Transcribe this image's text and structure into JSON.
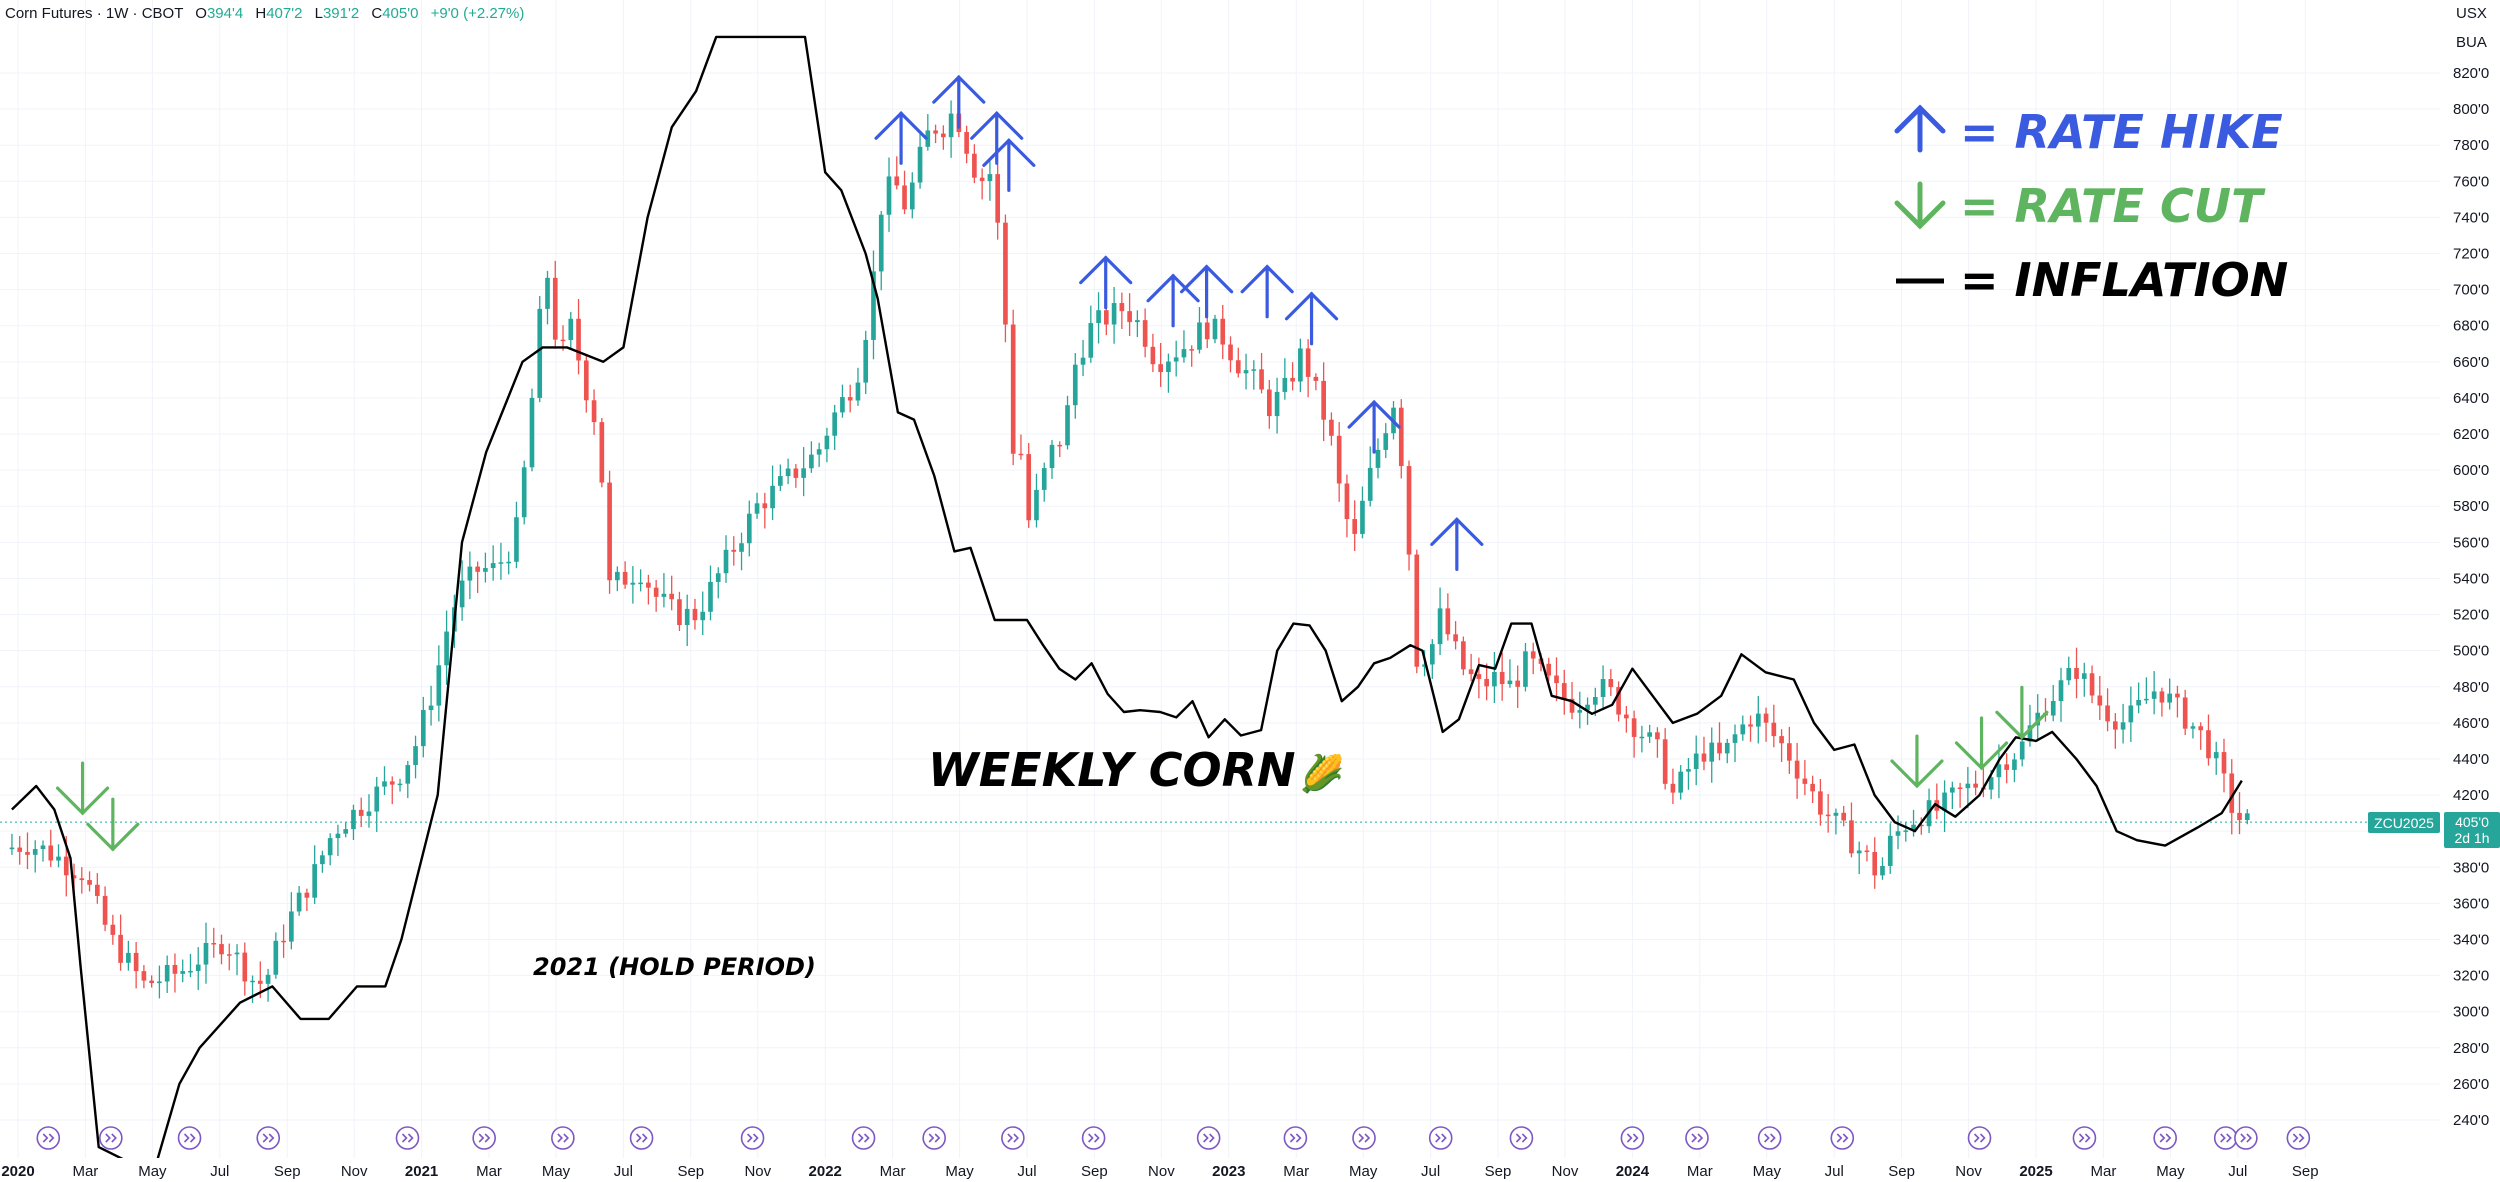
{
  "header": {
    "symbol": "Corn Futures · 1W · CBOT",
    "open_label": "O",
    "open": "394'4",
    "high_label": "H",
    "high": "407'2",
    "low_label": "L",
    "low": "391'2",
    "close_label": "C",
    "close": "405'0",
    "change": "+9'0 (+2.27%)"
  },
  "axis_units": [
    "USX",
    "BUA"
  ],
  "price_tag": {
    "ticker": "ZCU2025",
    "price": "405'0",
    "countdown": "2d 1h"
  },
  "colors": {
    "up": "#26a69a",
    "down": "#ef5350",
    "hike": "#3a5be0",
    "cut": "#5fb55f",
    "inflation": "#000000",
    "tag": "#26a69a"
  },
  "chart_data": {
    "type": "candlestick",
    "title": "WEEKLY CORN",
    "title_emoji": "🌽",
    "annotation": "2021 (HOLD PERIOD)",
    "y_ticks": [
      "240'0",
      "260'0",
      "280'0",
      "300'0",
      "320'0",
      "340'0",
      "360'0",
      "380'0",
      "400'0",
      "420'0",
      "440'0",
      "460'0",
      "480'0",
      "500'0",
      "520'0",
      "540'0",
      "560'0",
      "580'0",
      "600'0",
      "620'0",
      "640'0",
      "660'0",
      "680'0",
      "700'0",
      "720'0",
      "740'0",
      "760'0",
      "780'0",
      "800'0",
      "820'0"
    ],
    "ylim": [
      231,
      834
    ],
    "xlim": [
      2020.0,
      2025.83
    ],
    "x_ticks": [
      {
        "label": "2020",
        "t": 2020.0,
        "year": true
      },
      {
        "label": "Mar",
        "t": 2020.167
      },
      {
        "label": "May",
        "t": 2020.333
      },
      {
        "label": "Jul",
        "t": 2020.5
      },
      {
        "label": "Sep",
        "t": 2020.667
      },
      {
        "label": "Nov",
        "t": 2020.833
      },
      {
        "label": "2021",
        "t": 2021.0,
        "year": true
      },
      {
        "label": "Mar",
        "t": 2021.167
      },
      {
        "label": "May",
        "t": 2021.333
      },
      {
        "label": "Jul",
        "t": 2021.5
      },
      {
        "label": "Sep",
        "t": 2021.667
      },
      {
        "label": "Nov",
        "t": 2021.833
      },
      {
        "label": "2022",
        "t": 2022.0,
        "year": true
      },
      {
        "label": "Mar",
        "t": 2022.167
      },
      {
        "label": "May",
        "t": 2022.333
      },
      {
        "label": "Jul",
        "t": 2022.5
      },
      {
        "label": "Sep",
        "t": 2022.667
      },
      {
        "label": "Nov",
        "t": 2022.833
      },
      {
        "label": "2023",
        "t": 2023.0,
        "year": true
      },
      {
        "label": "Mar",
        "t": 2023.167
      },
      {
        "label": "May",
        "t": 2023.333
      },
      {
        "label": "Jul",
        "t": 2023.5
      },
      {
        "label": "Sep",
        "t": 2023.667
      },
      {
        "label": "Nov",
        "t": 2023.833
      },
      {
        "label": "2024",
        "t": 2024.0,
        "year": true
      },
      {
        "label": "Mar",
        "t": 2024.167
      },
      {
        "label": "May",
        "t": 2024.333
      },
      {
        "label": "Jul",
        "t": 2024.5
      },
      {
        "label": "Sep",
        "t": 2024.667
      },
      {
        "label": "Nov",
        "t": 2024.833
      },
      {
        "label": "2025",
        "t": 2025.0,
        "year": true
      },
      {
        "label": "Mar",
        "t": 2025.167
      },
      {
        "label": "May",
        "t": 2025.333
      },
      {
        "label": "Jul",
        "t": 2025.5
      },
      {
        "label": "Sep",
        "t": 2025.667
      }
    ],
    "last_price": 405,
    "price_path": [
      [
        2019.985,
        390
      ],
      [
        2020.04,
        393
      ],
      [
        2020.08,
        390
      ],
      [
        2020.12,
        385
      ],
      [
        2020.15,
        380
      ],
      [
        2020.18,
        377
      ],
      [
        2020.22,
        355
      ],
      [
        2020.25,
        340
      ],
      [
        2020.3,
        325
      ],
      [
        2020.33,
        315
      ],
      [
        2020.37,
        318
      ],
      [
        2020.42,
        322
      ],
      [
        2020.47,
        330
      ],
      [
        2020.5,
        333
      ],
      [
        2020.53,
        340
      ],
      [
        2020.56,
        330
      ],
      [
        2020.6,
        318
      ],
      [
        2020.63,
        315
      ],
      [
        2020.66,
        335
      ],
      [
        2020.7,
        355
      ],
      [
        2020.75,
        375
      ],
      [
        2020.8,
        400
      ],
      [
        2020.85,
        410
      ],
      [
        2020.9,
        420
      ],
      [
        2020.96,
        430
      ],
      [
        2021.0,
        445
      ],
      [
        2021.05,
        480
      ],
      [
        2021.09,
        520
      ],
      [
        2021.12,
        535
      ],
      [
        2021.16,
        545
      ],
      [
        2021.2,
        545
      ],
      [
        2021.25,
        560
      ],
      [
        2021.28,
        610
      ],
      [
        2021.31,
        680
      ],
      [
        2021.33,
        710
      ],
      [
        2021.36,
        660
      ],
      [
        2021.39,
        680
      ],
      [
        2021.42,
        650
      ],
      [
        2021.46,
        620
      ],
      [
        2021.48,
        535
      ],
      [
        2021.52,
        540
      ],
      [
        2021.56,
        545
      ],
      [
        2021.6,
        530
      ],
      [
        2021.65,
        520
      ],
      [
        2021.7,
        520
      ],
      [
        2021.75,
        540
      ],
      [
        2021.8,
        560
      ],
      [
        2021.85,
        580
      ],
      [
        2021.9,
        590
      ],
      [
        2021.95,
        600
      ],
      [
        2022.0,
        610
      ],
      [
        2022.04,
        630
      ],
      [
        2022.08,
        645
      ],
      [
        2022.1,
        655
      ],
      [
        2022.13,
        690
      ],
      [
        2022.16,
        750
      ],
      [
        2022.19,
        760
      ],
      [
        2022.22,
        745
      ],
      [
        2022.25,
        770
      ],
      [
        2022.28,
        790
      ],
      [
        2022.31,
        790
      ],
      [
        2022.34,
        800
      ],
      [
        2022.37,
        780
      ],
      [
        2022.4,
        760
      ],
      [
        2022.43,
        765
      ],
      [
        2022.46,
        710
      ],
      [
        2022.48,
        610
      ],
      [
        2022.5,
        620
      ],
      [
        2022.52,
        570
      ],
      [
        2022.55,
        590
      ],
      [
        2022.58,
        610
      ],
      [
        2022.61,
        620
      ],
      [
        2022.64,
        660
      ],
      [
        2022.68,
        680
      ],
      [
        2022.72,
        685
      ],
      [
        2022.76,
        690
      ],
      [
        2022.8,
        680
      ],
      [
        2022.84,
        660
      ],
      [
        2022.88,
        665
      ],
      [
        2022.92,
        670
      ],
      [
        2022.96,
        680
      ],
      [
        2023.0,
        675
      ],
      [
        2023.04,
        660
      ],
      [
        2023.08,
        650
      ],
      [
        2023.12,
        635
      ],
      [
        2023.16,
        645
      ],
      [
        2023.2,
        665
      ],
      [
        2023.24,
        640
      ],
      [
        2023.27,
        620
      ],
      [
        2023.3,
        580
      ],
      [
        2023.33,
        560
      ],
      [
        2023.36,
        590
      ],
      [
        2023.4,
        620
      ],
      [
        2023.43,
        640
      ],
      [
        2023.46,
        580
      ],
      [
        2023.48,
        495
      ],
      [
        2023.52,
        500
      ],
      [
        2023.54,
        520
      ],
      [
        2023.56,
        510
      ],
      [
        2023.6,
        490
      ],
      [
        2023.64,
        480
      ],
      [
        2023.68,
        485
      ],
      [
        2023.72,
        480
      ],
      [
        2023.76,
        495
      ],
      [
        2023.8,
        485
      ],
      [
        2023.84,
        475
      ],
      [
        2023.88,
        470
      ],
      [
        2023.92,
        480
      ],
      [
        2023.96,
        478
      ],
      [
        2024.0,
        465
      ],
      [
        2024.04,
        455
      ],
      [
        2024.08,
        445
      ],
      [
        2024.12,
        420
      ],
      [
        2024.16,
        435
      ],
      [
        2024.2,
        445
      ],
      [
        2024.24,
        440
      ],
      [
        2024.28,
        455
      ],
      [
        2024.32,
        465
      ],
      [
        2024.36,
        455
      ],
      [
        2024.4,
        445
      ],
      [
        2024.44,
        430
      ],
      [
        2024.48,
        415
      ],
      [
        2024.52,
        405
      ],
      [
        2024.56,
        395
      ],
      [
        2024.6,
        385
      ],
      [
        2024.63,
        375
      ],
      [
        2024.66,
        395
      ],
      [
        2024.7,
        405
      ],
      [
        2024.74,
        410
      ],
      [
        2024.78,
        412
      ],
      [
        2024.82,
        420
      ],
      [
        2024.86,
        425
      ],
      [
        2024.9,
        430
      ],
      [
        2024.94,
        440
      ],
      [
        2024.98,
        445
      ],
      [
        2025.0,
        455
      ],
      [
        2025.04,
        470
      ],
      [
        2025.08,
        480
      ],
      [
        2025.12,
        490
      ],
      [
        2025.16,
        475
      ],
      [
        2025.2,
        465
      ],
      [
        2025.24,
        460
      ],
      [
        2025.28,
        470
      ],
      [
        2025.32,
        480
      ],
      [
        2025.36,
        470
      ],
      [
        2025.4,
        460
      ],
      [
        2025.44,
        450
      ],
      [
        2025.48,
        430
      ],
      [
        2025.5,
        415
      ],
      [
        2025.53,
        405
      ]
    ],
    "inflation_series": [
      [
        2019.985,
        412
      ],
      [
        2020.045,
        425
      ],
      [
        2020.09,
        412
      ],
      [
        2020.13,
        385
      ],
      [
        2020.155,
        325
      ],
      [
        2020.2,
        225
      ],
      [
        2020.335,
        210
      ],
      [
        2020.4,
        260
      ],
      [
        2020.45,
        280
      ],
      [
        2020.55,
        305
      ],
      [
        2020.63,
        314
      ],
      [
        2020.7,
        296
      ],
      [
        2020.77,
        296
      ],
      [
        2020.84,
        314
      ],
      [
        2020.91,
        314
      ],
      [
        2020.95,
        340
      ],
      [
        2021.04,
        420
      ],
      [
        2021.1,
        560
      ],
      [
        2021.16,
        610
      ],
      [
        2021.25,
        660
      ],
      [
        2021.3,
        668
      ],
      [
        2021.36,
        668
      ],
      [
        2021.45,
        660
      ],
      [
        2021.5,
        668
      ],
      [
        2021.56,
        740
      ],
      [
        2021.62,
        790
      ],
      [
        2021.68,
        810
      ],
      [
        2021.73,
        840
      ],
      [
        2021.95,
        840
      ],
      [
        2022.0,
        765
      ],
      [
        2022.04,
        755
      ],
      [
        2022.1,
        720
      ],
      [
        2022.13,
        695
      ],
      [
        2022.18,
        632
      ],
      [
        2022.22,
        628
      ],
      [
        2022.27,
        597
      ],
      [
        2022.32,
        555
      ],
      [
        2022.36,
        557
      ],
      [
        2022.42,
        517
      ],
      [
        2022.46,
        517
      ],
      [
        2022.5,
        517
      ],
      [
        2022.54,
        503
      ],
      [
        2022.58,
        490
      ],
      [
        2022.62,
        484
      ],
      [
        2022.66,
        493
      ],
      [
        2022.7,
        476
      ],
      [
        2022.74,
        466
      ],
      [
        2022.78,
        467
      ],
      [
        2022.83,
        466
      ],
      [
        2022.87,
        463
      ],
      [
        2022.91,
        472
      ],
      [
        2022.95,
        452
      ],
      [
        2022.99,
        462
      ],
      [
        2023.03,
        453
      ],
      [
        2023.08,
        456
      ],
      [
        2023.12,
        500
      ],
      [
        2023.16,
        515
      ],
      [
        2023.2,
        514
      ],
      [
        2023.24,
        500
      ],
      [
        2023.28,
        472
      ],
      [
        2023.32,
        480
      ],
      [
        2023.36,
        493
      ],
      [
        2023.4,
        496
      ],
      [
        2023.45,
        503
      ],
      [
        2023.48,
        500
      ],
      [
        2023.53,
        455
      ],
      [
        2023.57,
        462
      ],
      [
        2023.62,
        492
      ],
      [
        2023.66,
        490
      ],
      [
        2023.7,
        515
      ],
      [
        2023.75,
        515
      ],
      [
        2023.8,
        475
      ],
      [
        2023.85,
        472
      ],
      [
        2023.9,
        465
      ],
      [
        2023.95,
        470
      ],
      [
        2024.0,
        490
      ],
      [
        2024.05,
        475
      ],
      [
        2024.1,
        460
      ],
      [
        2024.16,
        465
      ],
      [
        2024.22,
        475
      ],
      [
        2024.27,
        498
      ],
      [
        2024.33,
        488
      ],
      [
        2024.4,
        484
      ],
      [
        2024.45,
        460
      ],
      [
        2024.5,
        445
      ],
      [
        2024.55,
        448
      ],
      [
        2024.6,
        420
      ],
      [
        2024.65,
        405
      ],
      [
        2024.7,
        400
      ],
      [
        2024.75,
        415
      ],
      [
        2024.8,
        408
      ],
      [
        2024.86,
        420
      ],
      [
        2024.91,
        440
      ],
      [
        2024.95,
        452
      ],
      [
        2025.0,
        450
      ],
      [
        2025.04,
        455
      ],
      [
        2025.1,
        440
      ],
      [
        2025.15,
        425
      ],
      [
        2025.2,
        400
      ],
      [
        2025.25,
        395
      ],
      [
        2025.32,
        392
      ],
      [
        2025.4,
        402
      ],
      [
        2025.46,
        410
      ],
      [
        2025.51,
        428
      ]
    ],
    "rate_hikes": [
      {
        "t": 2022.188,
        "p": 770
      },
      {
        "t": 2022.331,
        "p": 790
      },
      {
        "t": 2022.425,
        "p": 770
      },
      {
        "t": 2022.455,
        "p": 755
      },
      {
        "t": 2022.695,
        "p": 690
      },
      {
        "t": 2022.862,
        "p": 680
      },
      {
        "t": 2022.945,
        "p": 685
      },
      {
        "t": 2023.095,
        "p": 685
      },
      {
        "t": 2023.205,
        "p": 670
      },
      {
        "t": 2023.36,
        "p": 610
      },
      {
        "t": 2023.565,
        "p": 545
      }
    ],
    "rate_cuts": [
      {
        "t": 2020.16,
        "p": 410
      },
      {
        "t": 2020.235,
        "p": 390
      },
      {
        "t": 2024.705,
        "p": 425
      },
      {
        "t": 2024.865,
        "p": 435
      },
      {
        "t": 2024.965,
        "p": 452
      }
    ],
    "legend": [
      {
        "symbol": "up-arrow",
        "label": "= RATE HIKE",
        "color": "#3a5be0"
      },
      {
        "symbol": "down-arrow",
        "label": "= RATE CUT",
        "color": "#5fb55f"
      },
      {
        "symbol": "line",
        "label": "= INFLATION",
        "color": "#000000"
      }
    ],
    "event_markers": [
      2020.075,
      2020.23,
      2020.425,
      2020.62,
      2020.965,
      2021.155,
      2021.35,
      2021.545,
      2021.82,
      2022.095,
      2022.27,
      2022.465,
      2022.665,
      2022.95,
      2023.165,
      2023.335,
      2023.525,
      2023.725,
      2024.0,
      2024.16,
      2024.34,
      2024.52,
      2024.86,
      2025.12,
      2025.32,
      2025.47,
      2025.52,
      2025.65
    ],
    "grid": true
  }
}
